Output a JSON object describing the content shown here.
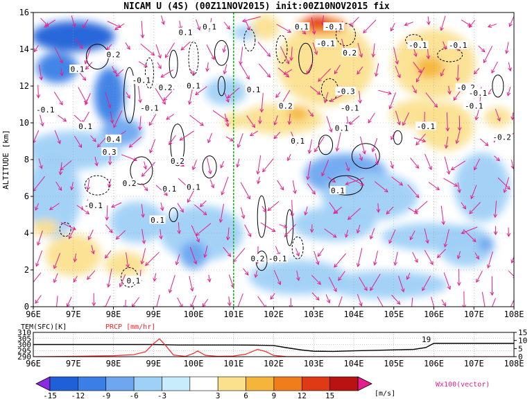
{
  "chart_data": [
    {
      "type": "heatmap",
      "title": "NICAM U (4S) (00Z11NOV2015) init:00Z10NOV2015 fix",
      "ylabel": "ALTITUDE [km]",
      "xlabel": "",
      "xlim": [
        96,
        108
      ],
      "ylim": [
        0,
        16
      ],
      "x_tick_labels": [
        "96E",
        "97E",
        "98E",
        "99E",
        "100E",
        "101E",
        "102E",
        "103E",
        "104E",
        "105E",
        "106E",
        "107E",
        "108E"
      ],
      "y_tick_labels": [
        "0",
        "2",
        "4",
        "6",
        "8",
        "10",
        "12",
        "14",
        "16"
      ],
      "y_ticks": [
        0,
        2,
        4,
        6,
        8,
        10,
        12,
        14,
        16
      ],
      "marker_line_lon": 101,
      "grid": "dotted",
      "vector_label": "Wx100(vector)",
      "contour_labels": [
        {
          "text": "0.1",
          "lon": 100.4,
          "alt": 15.2
        },
        {
          "text": "0.1",
          "lon": 99.8,
          "alt": 14.9
        },
        {
          "text": "0.1",
          "lon": 102.7,
          "alt": 15.2
        },
        {
          "text": "-0.1",
          "lon": 103.3,
          "alt": 14.3
        },
        {
          "text": "-0.1",
          "lon": 103.5,
          "alt": 15.2
        },
        {
          "text": "0.2",
          "lon": 103.9,
          "alt": 13.8
        },
        {
          "text": "-0.1",
          "lon": 105.6,
          "alt": 14.2
        },
        {
          "text": "-0.1",
          "lon": 106.6,
          "alt": 14.2
        },
        {
          "text": "0.1",
          "lon": 97.1,
          "alt": 12.9
        },
        {
          "text": "0.2",
          "lon": 98.0,
          "alt": 13.7
        },
        {
          "text": "-0.1",
          "lon": 98.7,
          "alt": 12.3
        },
        {
          "text": "0.2",
          "lon": 99.3,
          "alt": 11.9
        },
        {
          "text": "0.1",
          "lon": 100.0,
          "alt": 12.0
        },
        {
          "text": "0.1",
          "lon": 101.5,
          "alt": 11.8
        },
        {
          "text": "-0.3",
          "lon": 103.8,
          "alt": 11.7
        },
        {
          "text": "-0.2",
          "lon": 106.8,
          "alt": 11.9
        },
        {
          "text": "-0.1",
          "lon": 107.1,
          "alt": 11.6
        },
        {
          "text": "-0.1",
          "lon": 96.3,
          "alt": 10.7
        },
        {
          "text": "-0.1",
          "lon": 98.9,
          "alt": 10.8
        },
        {
          "text": "0.2",
          "lon": 102.3,
          "alt": 10.9
        },
        {
          "text": "-0.1",
          "lon": 103.9,
          "alt": 10.8
        },
        {
          "text": "-0.1",
          "lon": 107.0,
          "alt": 10.9
        },
        {
          "text": "0.1",
          "lon": 97.3,
          "alt": 9.8
        },
        {
          "text": "0.1",
          "lon": 103.7,
          "alt": 9.7
        },
        {
          "text": "-0.1",
          "lon": 105.8,
          "alt": 9.8
        },
        {
          "text": "-0.2",
          "lon": 107.7,
          "alt": 9.2
        },
        {
          "text": "0.4",
          "lon": 98.0,
          "alt": 9.1
        },
        {
          "text": "0.3",
          "lon": 97.9,
          "alt": 8.4
        },
        {
          "text": "0.1",
          "lon": 102.6,
          "alt": 9.0
        },
        {
          "text": "0.2",
          "lon": 99.6,
          "alt": 7.9
        },
        {
          "text": "0.2",
          "lon": 98.4,
          "alt": 6.7
        },
        {
          "text": "0.1",
          "lon": 99.4,
          "alt": 6.4
        },
        {
          "text": "0.1",
          "lon": 100.0,
          "alt": 6.5
        },
        {
          "text": "0.1",
          "lon": 103.6,
          "alt": 6.3
        },
        {
          "text": "-0.1",
          "lon": 97.5,
          "alt": 5.5
        },
        {
          "text": "0.1",
          "lon": 99.1,
          "alt": 4.7
        },
        {
          "text": "0.2",
          "lon": 101.6,
          "alt": 2.6
        },
        {
          "text": "-0.1",
          "lon": 102.1,
          "alt": 2.6
        },
        {
          "text": "0.1",
          "lon": 98.5,
          "alt": 1.4
        }
      ],
      "color_scale": {
        "unit": "[m/s]",
        "tick_labels": [
          "-15",
          "-12",
          "-9",
          "-6",
          "-3",
          "3",
          "6",
          "9",
          "12",
          "15"
        ],
        "colors": [
          "#8a2be2",
          "#1f5fd8",
          "#3a7ee6",
          "#6ea6f0",
          "#9fd0f7",
          "#c8ecfb",
          "#ffffff",
          "#fbe08e",
          "#f5b53c",
          "#f07d1c",
          "#df3a16",
          "#b81212",
          "#e61e8c"
        ]
      }
    },
    {
      "type": "line",
      "xlim": [
        96,
        108
      ],
      "x_tick_labels": [
        "96E",
        "97E",
        "98E",
        "99E",
        "100E",
        "101E",
        "102E",
        "103E",
        "104E",
        "105E",
        "106E",
        "107E",
        "108E"
      ],
      "left_axis_label": "TEM(SFC)[K]",
      "left_ticks": [
        "310",
        "305",
        "300",
        "295",
        "290"
      ],
      "right_axis_label": "PRCP [mm/hr]",
      "right_ticks": [
        "15",
        "10",
        "5",
        "0"
      ],
      "annotation": "19",
      "series": [
        {
          "name": "TEM(SFC)[K]",
          "color": "#000000",
          "x": [
            96,
            97,
            98,
            98.5,
            99,
            99.3,
            99.6,
            100,
            100.5,
            101,
            101.5,
            102,
            102.3,
            102.7,
            103,
            103.5,
            104,
            104.5,
            105,
            105.5,
            105.8,
            106,
            107,
            108
          ],
          "values": [
            300,
            300,
            300,
            300,
            300,
            299.8,
            299.6,
            299.6,
            299.6,
            299.6,
            299.5,
            299.2,
            297.5,
            295.5,
            294.5,
            294.3,
            294.8,
            295.2,
            295.6,
            296,
            297.5,
            301,
            301,
            301
          ]
        },
        {
          "name": "PRCP [mm/hr]",
          "color": "#ff2020",
          "x": [
            96,
            97,
            98,
            98.5,
            98.8,
            99,
            99.15,
            99.3,
            99.5,
            99.8,
            100,
            100.1,
            100.3,
            100.6,
            101,
            101.3,
            101.6,
            101.8,
            102,
            102.3,
            103,
            104,
            105,
            106,
            107,
            108
          ],
          "values": [
            0,
            0.2,
            0.6,
            1.2,
            3,
            8,
            11,
            7,
            1,
            0.2,
            2,
            3.5,
            0.8,
            0.2,
            0.4,
            1.5,
            4.5,
            3.2,
            0.8,
            0.1,
            0,
            0,
            0,
            0,
            0,
            0
          ]
        }
      ]
    }
  ]
}
